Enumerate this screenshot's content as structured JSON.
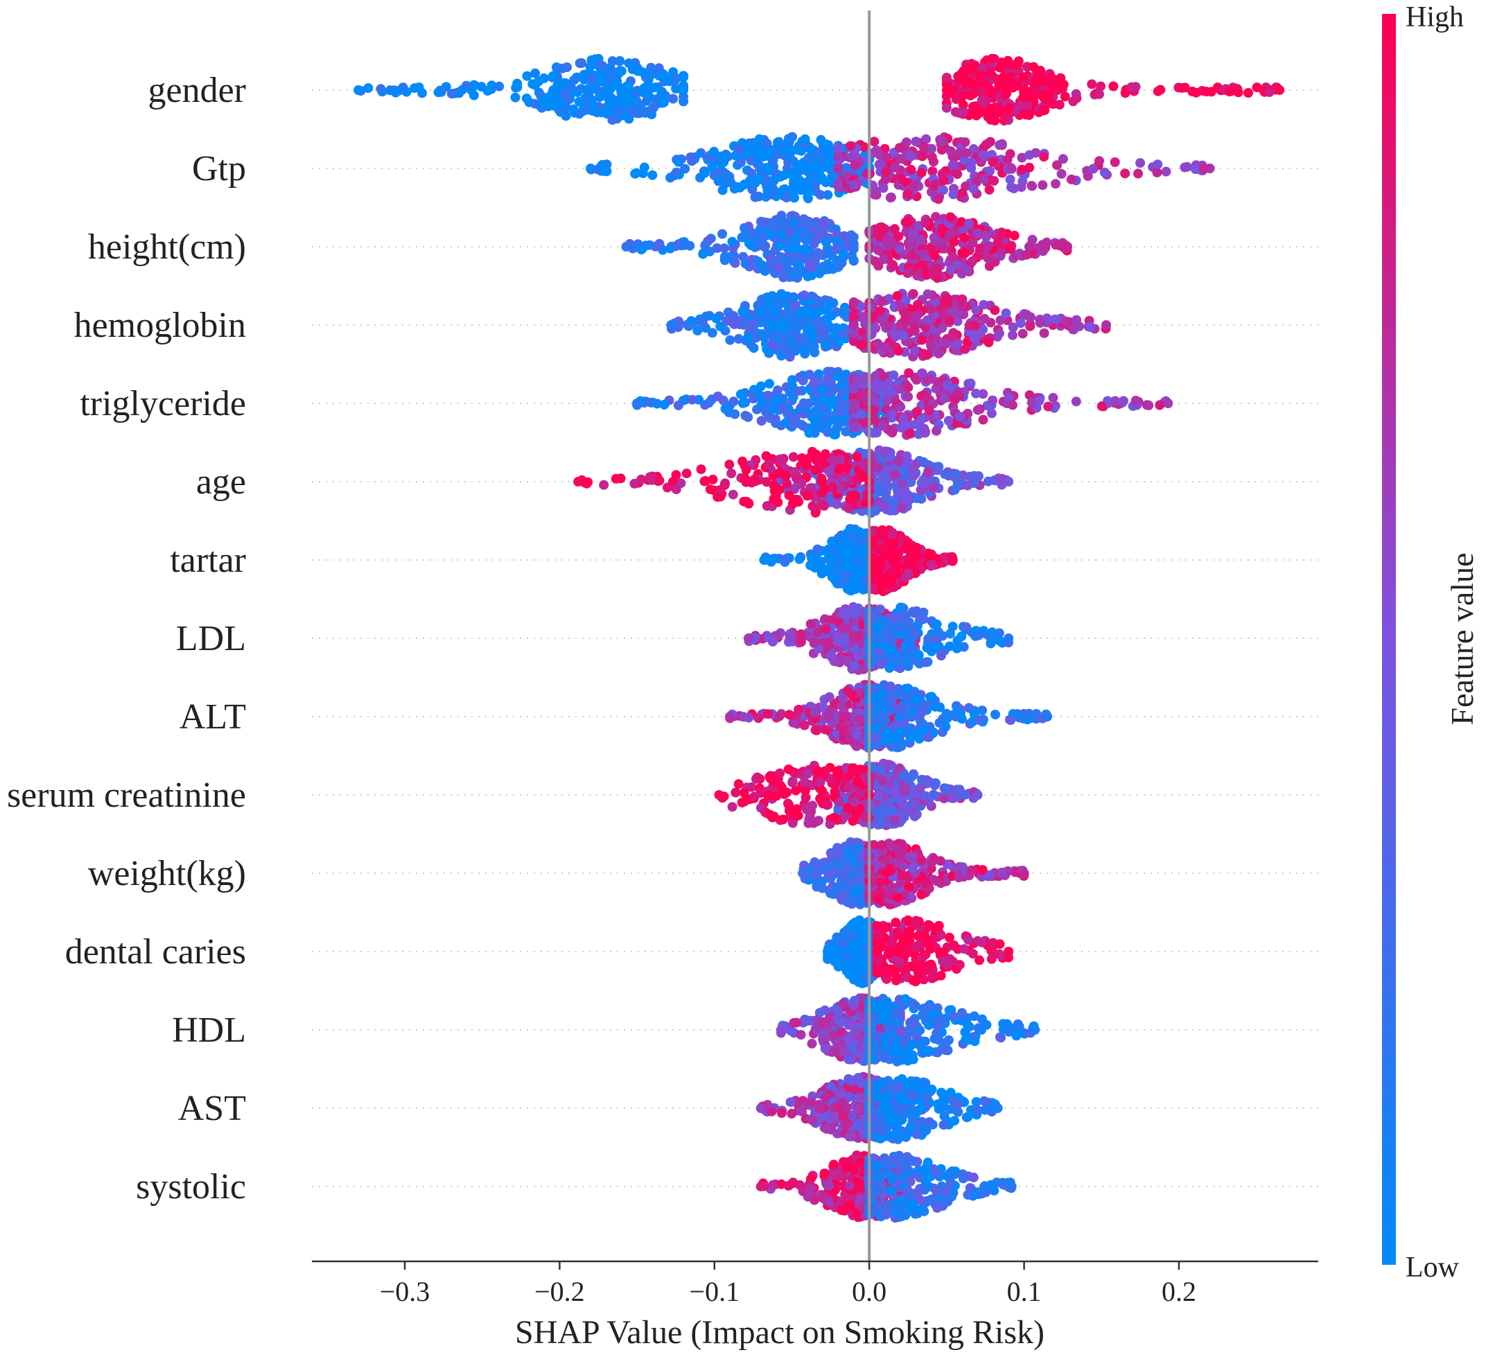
{
  "chart_data": {
    "type": "scatter",
    "subtype": "shap-beeswarm",
    "xlabel": "SHAP Value (Impact on Smoking Risk)",
    "xlim": [
      -0.36,
      0.29
    ],
    "xticks": [
      -0.3,
      -0.2,
      -0.1,
      0.0,
      0.1,
      0.2
    ],
    "xtick_labels": [
      "−0.3",
      "−0.2",
      "−0.1",
      "0.0",
      "0.1",
      "0.2"
    ],
    "zero_line": 0.0,
    "colorbar": {
      "title": "Feature value",
      "high_label": "High",
      "low_label": "Low",
      "low_color": "#008bfb",
      "high_color": "#ff0052"
    },
    "features": [
      {
        "name": "gender",
        "min": -0.33,
        "max": 0.265,
        "clusters": [
          {
            "center": -0.17,
            "spread": 0.025,
            "tail_lo": -0.33,
            "tail_hi": -0.12,
            "color": 0.0,
            "weight": 1
          },
          {
            "center": 0.084,
            "spread": 0.02,
            "tail_lo": 0.05,
            "tail_hi": 0.265,
            "color": 1.0,
            "weight": 1
          }
        ]
      },
      {
        "name": "Gtp",
        "min": -0.18,
        "max": 0.22,
        "clusters": [
          {
            "center": -0.052,
            "spread": 0.03,
            "tail_lo": -0.18,
            "tail_hi": 0.0,
            "color": 0.05,
            "weight": 1.1
          },
          {
            "center": 0.04,
            "spread": 0.04,
            "tail_lo": -0.02,
            "tail_hi": 0.22,
            "color": 0.7,
            "weight": 0.9
          }
        ]
      },
      {
        "name": "height(cm)",
        "min": -0.157,
        "max": 0.128,
        "clusters": [
          {
            "center": -0.05,
            "spread": 0.02,
            "tail_lo": -0.157,
            "tail_hi": -0.01,
            "color": 0.2,
            "weight": 1
          },
          {
            "center": 0.042,
            "spread": 0.022,
            "tail_lo": 0.0,
            "tail_hi": 0.128,
            "color": 0.78,
            "weight": 1
          }
        ]
      },
      {
        "name": "hemoglobin",
        "min": -0.128,
        "max": 0.153,
        "clusters": [
          {
            "center": -0.05,
            "spread": 0.02,
            "tail_lo": -0.128,
            "tail_hi": -0.01,
            "color": 0.15,
            "weight": 1
          },
          {
            "center": 0.03,
            "spread": 0.03,
            "tail_lo": -0.01,
            "tail_hi": 0.153,
            "color": 0.72,
            "weight": 1.1
          }
        ]
      },
      {
        "name": "triglyceride",
        "min": -0.15,
        "max": 0.193,
        "clusters": [
          {
            "center": -0.025,
            "spread": 0.025,
            "tail_lo": -0.15,
            "tail_hi": 0.01,
            "color": 0.15,
            "weight": 1
          },
          {
            "center": 0.02,
            "spread": 0.03,
            "tail_lo": -0.01,
            "tail_hi": 0.193,
            "color": 0.65,
            "weight": 0.9
          }
        ]
      },
      {
        "name": "age",
        "min": -0.188,
        "max": 0.09,
        "clusters": [
          {
            "center": 0.005,
            "spread": 0.02,
            "tail_lo": -0.06,
            "tail_hi": 0.09,
            "color": 0.45,
            "weight": 1.2
          },
          {
            "center": -0.04,
            "spread": 0.03,
            "tail_lo": -0.188,
            "tail_hi": 0.0,
            "color": 0.95,
            "weight": 0.6
          }
        ]
      },
      {
        "name": "tartar",
        "min": -0.068,
        "max": 0.054,
        "clusters": [
          {
            "center": -0.009,
            "spread": 0.01,
            "tail_lo": -0.068,
            "tail_hi": -0.002,
            "color": 0.0,
            "weight": 1
          },
          {
            "center": 0.008,
            "spread": 0.01,
            "tail_lo": 0.002,
            "tail_hi": 0.054,
            "color": 1.0,
            "weight": 1
          }
        ]
      },
      {
        "name": "LDL",
        "min": -0.078,
        "max": 0.09,
        "clusters": [
          {
            "center": -0.006,
            "spread": 0.015,
            "tail_lo": -0.078,
            "tail_hi": 0.03,
            "color": 0.65,
            "weight": 1
          },
          {
            "center": 0.015,
            "spread": 0.02,
            "tail_lo": 0.0,
            "tail_hi": 0.09,
            "color": 0.15,
            "weight": 0.7
          }
        ]
      },
      {
        "name": "ALT",
        "min": -0.09,
        "max": 0.115,
        "clusters": [
          {
            "center": -0.002,
            "spread": 0.015,
            "tail_lo": -0.09,
            "tail_hi": 0.02,
            "color": 0.7,
            "weight": 0.9
          },
          {
            "center": 0.01,
            "spread": 0.02,
            "tail_lo": 0.0,
            "tail_hi": 0.115,
            "color": 0.15,
            "weight": 0.9
          }
        ]
      },
      {
        "name": "serum creatinine",
        "min": -0.097,
        "max": 0.092,
        "clusters": [
          {
            "center": 0.008,
            "spread": 0.015,
            "tail_lo": -0.02,
            "tail_hi": 0.07,
            "color": 0.45,
            "weight": 1
          },
          {
            "center": -0.03,
            "spread": 0.025,
            "tail_lo": -0.097,
            "tail_hi": 0.0,
            "color": 0.95,
            "weight": 0.6
          }
        ]
      },
      {
        "name": "weight(kg)",
        "min": -0.043,
        "max": 0.1,
        "clusters": [
          {
            "center": -0.008,
            "spread": 0.012,
            "tail_lo": -0.043,
            "tail_hi": 0.01,
            "color": 0.25,
            "weight": 1
          },
          {
            "center": 0.012,
            "spread": 0.015,
            "tail_lo": 0.0,
            "tail_hi": 0.1,
            "color": 0.75,
            "weight": 1
          }
        ]
      },
      {
        "name": "dental caries",
        "min": -0.027,
        "max": 0.09,
        "clusters": [
          {
            "center": -0.004,
            "spread": 0.008,
            "tail_lo": -0.027,
            "tail_hi": 0.005,
            "color": 0.0,
            "weight": 1.2
          },
          {
            "center": 0.025,
            "spread": 0.02,
            "tail_lo": 0.005,
            "tail_hi": 0.09,
            "color": 1.0,
            "weight": 0.7
          }
        ]
      },
      {
        "name": "HDL",
        "min": -0.057,
        "max": 0.107,
        "clusters": [
          {
            "center": -0.005,
            "spread": 0.015,
            "tail_lo": -0.057,
            "tail_hi": 0.02,
            "color": 0.55,
            "weight": 1
          },
          {
            "center": 0.015,
            "spread": 0.025,
            "tail_lo": 0.0,
            "tail_hi": 0.107,
            "color": 0.1,
            "weight": 0.8
          }
        ]
      },
      {
        "name": "AST",
        "min": -0.07,
        "max": 0.083,
        "clusters": [
          {
            "center": -0.005,
            "spread": 0.015,
            "tail_lo": -0.07,
            "tail_hi": 0.02,
            "color": 0.6,
            "weight": 1
          },
          {
            "center": 0.015,
            "spread": 0.02,
            "tail_lo": 0.0,
            "tail_hi": 0.083,
            "color": 0.1,
            "weight": 0.8
          }
        ]
      },
      {
        "name": "systolic",
        "min": -0.07,
        "max": 0.092,
        "clusters": [
          {
            "center": -0.003,
            "spread": 0.015,
            "tail_lo": -0.07,
            "tail_hi": 0.02,
            "color": 0.85,
            "weight": 1
          },
          {
            "center": 0.015,
            "spread": 0.02,
            "tail_lo": 0.0,
            "tail_hi": 0.092,
            "color": 0.2,
            "weight": 0.8
          }
        ]
      }
    ]
  }
}
